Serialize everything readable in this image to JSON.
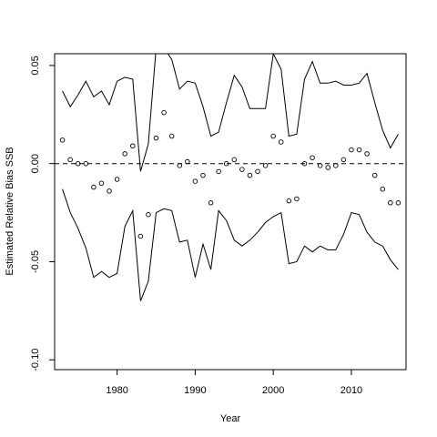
{
  "chart_data": {
    "type": "line",
    "xlabel": "Year",
    "ylabel": "Estimated Relative Bias SSB",
    "xlim": [
      1972,
      2017
    ],
    "ylim": [
      -0.105,
      0.056
    ],
    "x_ticks": [
      {
        "value": 1980,
        "label": "1980"
      },
      {
        "value": 1990,
        "label": "1990"
      },
      {
        "value": 2000,
        "label": "2000"
      },
      {
        "value": 2010,
        "label": "2010"
      }
    ],
    "y_ticks": [
      {
        "value": -0.1,
        "label": "-0.10"
      },
      {
        "value": -0.05,
        "label": "-0.05"
      },
      {
        "value": 0.0,
        "label": "0.00"
      },
      {
        "value": 0.05,
        "label": "0.05"
      }
    ],
    "reference_line": {
      "y": 0,
      "style": "dashed"
    },
    "x": [
      1973,
      1974,
      1975,
      1976,
      1977,
      1978,
      1979,
      1980,
      1981,
      1982,
      1983,
      1984,
      1985,
      1986,
      1987,
      1988,
      1989,
      1990,
      1991,
      1992,
      1993,
      1994,
      1995,
      1996,
      1997,
      1998,
      1999,
      2000,
      2001,
      2002,
      2003,
      2004,
      2005,
      2006,
      2007,
      2008,
      2009,
      2010,
      2011,
      2012,
      2013,
      2014,
      2015,
      2016
    ],
    "series": [
      {
        "style": "line",
        "values": [
          0.037,
          0.029,
          0.035,
          0.042,
          0.034,
          0.037,
          0.03,
          0.042,
          0.044,
          0.043,
          -0.004,
          0.01,
          0.059,
          0.059,
          0.053,
          0.038,
          0.042,
          0.041,
          0.029,
          0.014,
          0.016,
          0.031,
          0.045,
          0.039,
          0.028,
          0.028,
          0.028,
          0.056,
          0.048,
          0.014,
          0.015,
          0.043,
          0.052,
          0.041,
          0.041,
          0.042,
          0.04,
          0.04,
          0.041,
          0.046,
          0.031,
          0.017,
          0.008,
          0.015
        ]
      },
      {
        "style": "points",
        "values": [
          0.012,
          0.002,
          0.0,
          0.0,
          -0.012,
          -0.01,
          -0.014,
          -0.008,
          0.005,
          0.009,
          -0.037,
          -0.026,
          0.013,
          0.026,
          0.014,
          -0.001,
          0.001,
          -0.009,
          -0.006,
          -0.02,
          -0.004,
          0.0,
          0.002,
          -0.003,
          -0.006,
          -0.004,
          -0.001,
          0.014,
          0.011,
          -0.019,
          -0.018,
          0.0,
          0.003,
          -0.001,
          -0.002,
          -0.001,
          0.002,
          0.007,
          0.007,
          0.005,
          -0.006,
          -0.013,
          -0.02,
          -0.02
        ]
      },
      {
        "style": "line",
        "values": [
          -0.013,
          -0.025,
          -0.033,
          -0.043,
          -0.058,
          -0.055,
          -0.058,
          -0.056,
          -0.032,
          -0.024,
          -0.07,
          -0.06,
          -0.025,
          -0.023,
          -0.024,
          -0.04,
          -0.039,
          -0.058,
          -0.041,
          -0.054,
          -0.024,
          -0.029,
          -0.039,
          -0.042,
          -0.039,
          -0.035,
          -0.03,
          -0.027,
          -0.025,
          -0.051,
          -0.05,
          -0.042,
          -0.045,
          -0.042,
          -0.044,
          -0.044,
          -0.036,
          -0.025,
          -0.026,
          -0.035,
          -0.04,
          -0.042,
          -0.049,
          -0.054
        ]
      }
    ]
  }
}
